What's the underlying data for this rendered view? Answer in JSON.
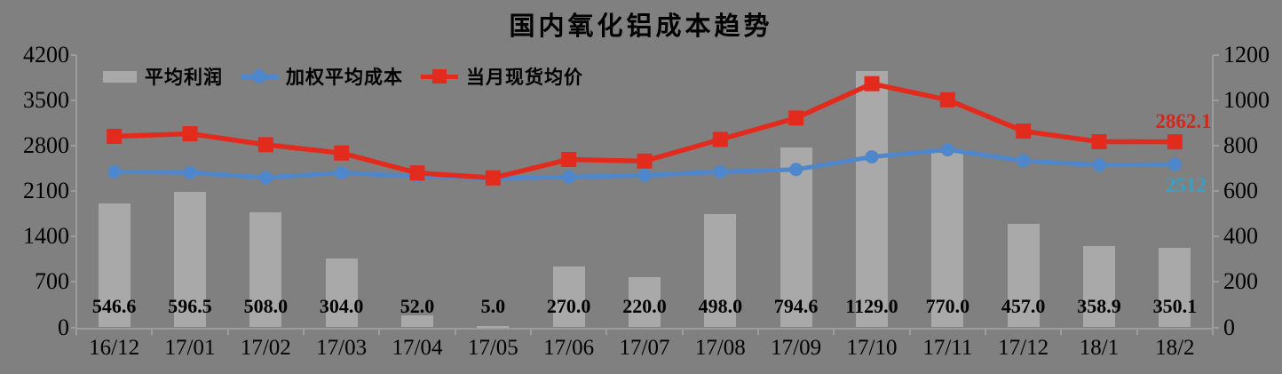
{
  "title": "国内氧化铝成本趋势",
  "colors": {
    "background": "#808080",
    "bar": "#a9a9a9",
    "blue_line": "#4f87cd",
    "blue_label": "#35a0c8",
    "red_line": "#e32b1d",
    "red_label": "#d3281c",
    "axis": "#9c9c9c",
    "text": "#000000"
  },
  "chart_data": {
    "type": "combo (bar + two lines, dual axis)",
    "title": "国内氧化铝成本趋势",
    "categories": [
      "16/12",
      "17/01",
      "17/02",
      "17/03",
      "17/04",
      "17/05",
      "17/06",
      "17/07",
      "17/08",
      "17/09",
      "17/10",
      "17/11",
      "17/12",
      "18/1",
      "18/2"
    ],
    "series": [
      {
        "name": "平均利润",
        "type": "bar",
        "axis": "right",
        "values": [
          546.6,
          596.5,
          508.0,
          304.0,
          52.0,
          5.0,
          270.0,
          220.0,
          498.0,
          794.6,
          1129.0,
          770.0,
          457.0,
          358.9,
          350.1
        ],
        "value_labels": [
          "546.6",
          "596.5",
          "508.0",
          "304.0",
          "52.0",
          "5.0",
          "270.0",
          "220.0",
          "498.0",
          "794.6",
          "1129.0",
          "770.0",
          "457.0",
          "358.9",
          "350.1"
        ]
      },
      {
        "name": "加权平均成本",
        "type": "line",
        "marker": "circle",
        "axis": "left",
        "values": [
          2400,
          2390,
          2310,
          2385,
          2330,
          2300,
          2320,
          2345,
          2400,
          2435,
          2630,
          2740,
          2570,
          2505,
          2512
        ],
        "values_estimated": true,
        "end_label": "2512"
      },
      {
        "name": "当月现货均价",
        "type": "line",
        "marker": "square",
        "axis": "left",
        "values": [
          2946.6,
          2986.5,
          2818,
          2689,
          2382,
          2305,
          2590,
          2565,
          2898,
          3229.6,
          3759,
          3510,
          3027,
          2863.9,
          2862.1
        ],
        "values_estimated": true,
        "end_label": "2862.1"
      }
    ],
    "left_axis": {
      "range": [
        0,
        4200
      ],
      "ticks": [
        0,
        700,
        1400,
        2100,
        2800,
        3500,
        4200
      ],
      "tick_labels": [
        "0",
        "700",
        "1400",
        "2100",
        "2800",
        "3500",
        "4200"
      ]
    },
    "right_axis": {
      "range": [
        0,
        1200
      ],
      "ticks": [
        0,
        200,
        400,
        600,
        800,
        1000,
        1200
      ],
      "tick_labels": [
        "0",
        "200",
        "400",
        "600",
        "800",
        "1000",
        "1200"
      ]
    },
    "legend_position": "top-left",
    "grid": false
  }
}
